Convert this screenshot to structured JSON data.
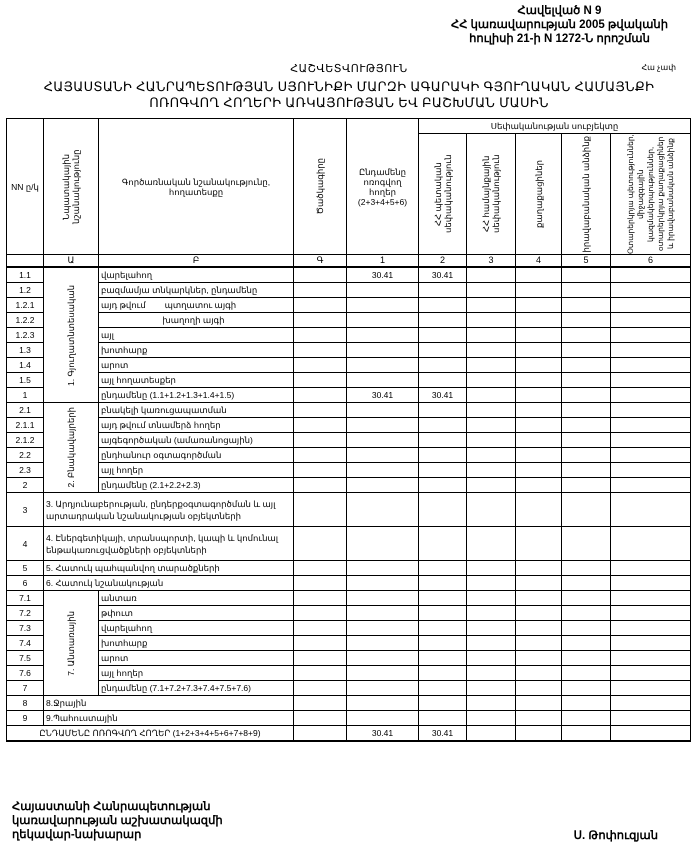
{
  "annex": {
    "line1": "Հավելված N 9",
    "line2": "ՀՀ կառավարության 2005 թվականի",
    "line3": "հուլիսի 21-ի N 1272-Ն որոշման"
  },
  "report_label": "ՀԱՇՎԵՏՎՈՒԹՅՈՒՆ",
  "unit": "Հա չափ",
  "title": {
    "line1": "ՀԱՅԱՍՏԱՆԻ ՀԱՆՐԱՊԵՏՈՒԹՅԱՆ ՍՅՈՒՆԻՔԻ ՄԱՐԶԻ ԱԳԱՐԱԿԻ ԳՅՈՒՂԱԿԱՆ ՀԱՄԱՅՆՔԻ",
    "line2": "ՈՌՈԳՎՈՂ ՀՈՂԵՐԻ ԱՌԿԱՅՈՒԹՅԱՆ ԵՎ ԲԱՇԽՄԱՆ ՄԱՍԻՆ"
  },
  "headers": {
    "nn": "NN ը/կ",
    "purpose": "Նպատակային նշանակությունը",
    "function": "Գործառնական նշանակությունը, հողատեսքը",
    "code": "Ծածկագիրը",
    "total": "Ընդամենը ոռոգվող հողեր (2+3+4+5+6)",
    "ownership": "Սեփականության սուբյեկտը",
    "c2": "ՀՀ պետական սեփականություն",
    "c3": "ՀՀ համայնքային սեփականություն",
    "c4": "քաղաքացիներ",
    "c5": "իրավաբանական անձինք",
    "c6": "Օտարերկրյա պետություններ, միջազգային կազմակերպություններ, օտարերկրյա քաղաքացիներ և իրավաբանական անձինք"
  },
  "index_row": [
    "",
    "Ա",
    "Բ",
    "Գ",
    "1",
    "2",
    "3",
    "4",
    "5",
    "6"
  ],
  "groups": {
    "g1": "1. Գյուղատնտեսական",
    "g2": "2. Բնակավայրերի",
    "g7": "7. Անտառային"
  },
  "rows": [
    {
      "code": "1.1",
      "label": "վարելահող",
      "v": [
        "",
        "30.41",
        "30.41",
        "",
        "",
        "",
        ""
      ]
    },
    {
      "code": "1.2",
      "label": "բազմամյա տնկարկներ, ընդամենը",
      "v": [
        "",
        "",
        "",
        "",
        "",
        "",
        ""
      ]
    },
    {
      "code": "1.2.1",
      "label": "այդ թվում        պտղատու այգի",
      "v": [
        "",
        "",
        "",
        "",
        "",
        "",
        ""
      ]
    },
    {
      "code": "1.2.2",
      "label": "                          խաղողի այգի",
      "v": [
        "",
        "",
        "",
        "",
        "",
        "",
        ""
      ]
    },
    {
      "code": "1.2.3",
      "label": "այլ",
      "v": [
        "",
        "",
        "",
        "",
        "",
        "",
        ""
      ]
    },
    {
      "code": "1.3",
      "label": "խոտհարք",
      "v": [
        "",
        "",
        "",
        "",
        "",
        "",
        ""
      ]
    },
    {
      "code": "1.4",
      "label": "արոտ",
      "v": [
        "",
        "",
        "",
        "",
        "",
        "",
        ""
      ]
    },
    {
      "code": "1.5",
      "label": "այլ հողատեսքեր",
      "v": [
        "",
        "",
        "",
        "",
        "",
        "",
        ""
      ]
    },
    {
      "code": "1",
      "label": "ընդամենը (1.1+1.2+1.3+1.4+1.5)",
      "v": [
        "",
        "30.41",
        "30.41",
        "",
        "",
        "",
        ""
      ]
    },
    {
      "code": "2.1",
      "label": "բնակելի կառուցապատման",
      "v": [
        "",
        "",
        "",
        "",
        "",
        "",
        ""
      ]
    },
    {
      "code": "2.1.1",
      "label": "այդ թվում տնամերձ հողեր",
      "v": [
        "",
        "",
        "",
        "",
        "",
        "",
        ""
      ]
    },
    {
      "code": "2.1.2",
      "label": "այգեգործական (ամառանոցային)",
      "v": [
        "",
        "",
        "",
        "",
        "",
        "",
        ""
      ]
    },
    {
      "code": "2.2",
      "label": "ընդհանուր օգտագործման",
      "v": [
        "",
        "",
        "",
        "",
        "",
        "",
        ""
      ]
    },
    {
      "code": "2.3",
      "label": "այլ հողեր",
      "v": [
        "",
        "",
        "",
        "",
        "",
        "",
        ""
      ]
    },
    {
      "code": "2",
      "label": "ընդամենը (2.1+2.2+2.3)",
      "v": [
        "",
        "",
        "",
        "",
        "",
        "",
        ""
      ]
    },
    {
      "code": "3",
      "label": "3. Արդյունաբերության, ընդերքօգտագործման և այլ արտադրական նշանակության օբյեկտների",
      "v": [
        "",
        "",
        "",
        "",
        "",
        "",
        ""
      ]
    },
    {
      "code": "4",
      "label": "4. Էներգետիկայի, տրանսպորտի, կապի և կոմունալ ենթակառուցվածքների օբյեկտների",
      "v": [
        "",
        "",
        "",
        "",
        "",
        "",
        ""
      ]
    },
    {
      "code": "5",
      "label": "5. Հատուկ պահպանվող տարածքների",
      "v": [
        "",
        "",
        "",
        "",
        "",
        "",
        ""
      ]
    },
    {
      "code": "6",
      "label": "6. Հատուկ նշանակության",
      "v": [
        "",
        "",
        "",
        "",
        "",
        "",
        ""
      ]
    },
    {
      "code": "7.1",
      "label": "անտառ",
      "v": [
        "",
        "",
        "",
        "",
        "",
        "",
        ""
      ]
    },
    {
      "code": "7.2",
      "label": "թփուտ",
      "v": [
        "",
        "",
        "",
        "",
        "",
        "",
        ""
      ]
    },
    {
      "code": "7.3",
      "label": "վարելահող",
      "v": [
        "",
        "",
        "",
        "",
        "",
        "",
        ""
      ]
    },
    {
      "code": "7.4",
      "label": "խոտհարք",
      "v": [
        "",
        "",
        "",
        "",
        "",
        "",
        ""
      ]
    },
    {
      "code": "7.5",
      "label": "արոտ",
      "v": [
        "",
        "",
        "",
        "",
        "",
        "",
        ""
      ]
    },
    {
      "code": "7.6",
      "label": "այլ հողեր",
      "v": [
        "",
        "",
        "",
        "",
        "",
        "",
        ""
      ]
    },
    {
      "code": "7",
      "label": "ընդամենը (7.1+7.2+7.3+7.4+7.5+7.6)",
      "v": [
        "",
        "",
        "",
        "",
        "",
        "",
        ""
      ]
    },
    {
      "code": "8",
      "label": "8.Ջրային",
      "v": [
        "",
        "",
        "",
        "",
        "",
        "",
        ""
      ]
    },
    {
      "code": "9",
      "label": "9.Պահուստային",
      "v": [
        "",
        "",
        "",
        "",
        "",
        "",
        ""
      ]
    }
  ],
  "total_row": {
    "label": "ԸՆԴԱՄԵՆԸ ՈՌՈԳՎՈՂ ՀՈՂԵՐ (1+2+3+4+5+6+7+8+9)",
    "v": [
      "",
      "30.41",
      "30.41",
      "",
      "",
      "",
      ""
    ]
  },
  "footer": {
    "line1": "Հայաստանի Հանրապետության",
    "line2": "կառավարության աշխատակազմի",
    "line3": "ղեկավար-նախարար",
    "signature": "Ս. Թոփուզյան"
  }
}
